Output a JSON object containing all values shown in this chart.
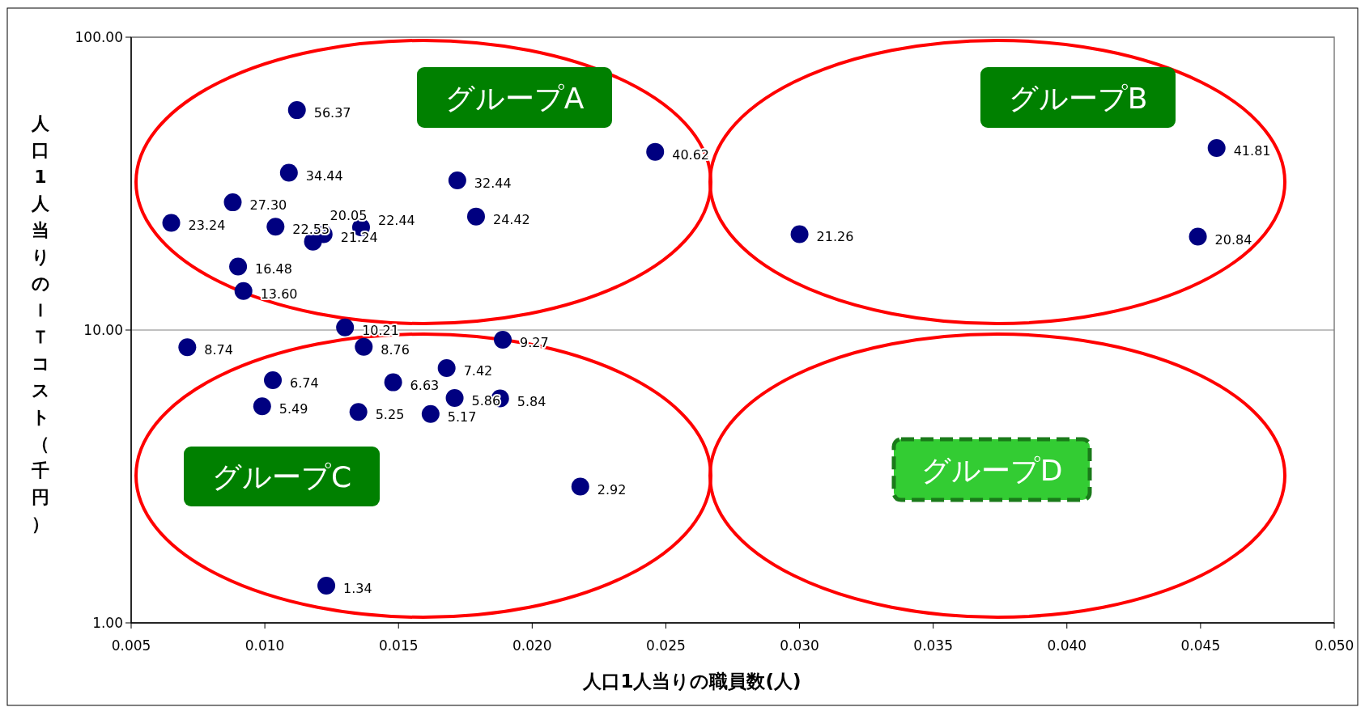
{
  "chart_data": {
    "type": "scatter",
    "xlabel": "人口1人当りの職員数(人)",
    "ylabel": "人口1人当りのＩＴコスト（千円）",
    "x": [
      0.0112,
      0.0246,
      0.0109,
      0.0172,
      0.0088,
      0.0179,
      0.0065,
      0.0104,
      0.0122,
      0.0136,
      0.0118,
      0.009,
      0.0092,
      0.013,
      0.0071,
      0.0137,
      0.0189,
      0.0168,
      0.0103,
      0.0148,
      0.0099,
      0.0135,
      0.0162,
      0.0171,
      0.0188,
      0.0218,
      0.0123,
      0.0456,
      0.03,
      0.0449
    ],
    "series": [
      {
        "color": "#000080",
        "values": [
          56.37,
          40.62,
          34.44,
          32.44,
          27.3,
          24.42,
          23.24,
          22.55,
          21.24,
          22.44,
          20.05,
          16.48,
          13.6,
          10.21,
          8.74,
          8.76,
          9.27,
          7.42,
          6.74,
          6.63,
          5.49,
          5.25,
          5.17,
          5.86,
          5.84,
          2.92,
          1.34,
          41.81,
          21.26,
          20.84
        ],
        "value_labels": [
          "56.37",
          "40.62",
          "34.44",
          "32.44",
          "27.30",
          "24.42",
          "23.24",
          "22.55",
          "21.24",
          "22.44",
          "20.05",
          "16.48",
          "13.60",
          "10.21",
          "8.74",
          "8.76",
          "9.27",
          "7.42",
          "6.74",
          "6.63",
          "5.49",
          "5.25",
          "5.17",
          "5.86",
          "5.84",
          "2.92",
          "1.34",
          "41.81",
          "21.26",
          "20.84"
        ]
      }
    ],
    "xlim": [
      0.005,
      0.05
    ],
    "ylim": [
      1,
      100
    ],
    "log": "y",
    "xticks": [
      {
        "value": 0.005,
        "label": "0.005"
      },
      {
        "value": 0.01,
        "label": "0.010"
      },
      {
        "value": 0.015,
        "label": "0.015"
      },
      {
        "value": 0.02,
        "label": "0.020"
      },
      {
        "value": 0.025,
        "label": "0.025"
      },
      {
        "value": 0.03,
        "label": "0.030"
      },
      {
        "value": 0.035,
        "label": "0.035"
      },
      {
        "value": 0.04,
        "label": "0.040"
      },
      {
        "value": 0.045,
        "label": "0.045"
      },
      {
        "value": 0.05,
        "label": "0.050"
      }
    ],
    "yticks": [
      {
        "value": 1,
        "label": "1.00"
      },
      {
        "value": 10,
        "label": "10.00"
      },
      {
        "value": 100,
        "label": "100.00"
      }
    ],
    "grid": "y",
    "marker": "circle",
    "annotations": [
      "グループA",
      "グループB",
      "グループC",
      "グループD"
    ]
  }
}
